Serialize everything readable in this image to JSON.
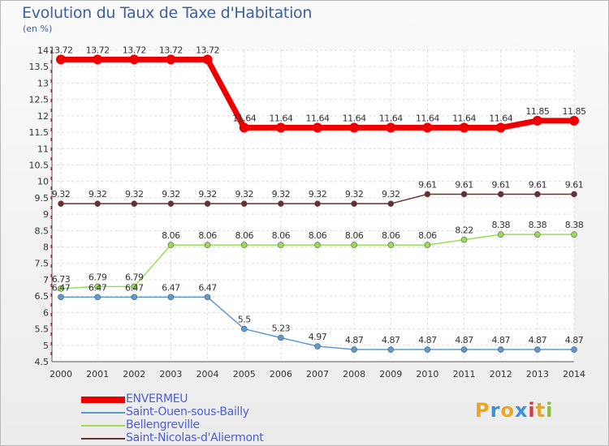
{
  "title": "Evolution du Taux de Taxe d'Habitation",
  "unit": "(en %)",
  "logo": {
    "text": "Proxiti",
    "letters": [
      "P",
      "r",
      "o",
      "x",
      "i",
      "t",
      "i"
    ],
    "colors": [
      "#e8a81e",
      "#3f8fd8",
      "#e8a81e",
      "#3f8fd8",
      "#d8384a",
      "#e8a81e",
      "#8cbd3c"
    ]
  },
  "chart_data": {
    "type": "line",
    "title": "Evolution du Taux de Taxe d'Habitation",
    "ylabel": "(en %)",
    "xlabel": "",
    "x": [
      "2000",
      "2001",
      "2002",
      "2003",
      "2004",
      "2005",
      "2006",
      "2007",
      "2008",
      "2009",
      "2010",
      "2011",
      "2012",
      "2013",
      "2014"
    ],
    "ylim": [
      4.5,
      14
    ],
    "yticks": [
      "4.5",
      "5",
      "5.5",
      "6",
      "6.5",
      "7",
      "7.5",
      "8",
      "8.5",
      "9",
      "9.5",
      "10",
      "10.5",
      "11",
      "11.5",
      "12",
      "12.5",
      "13",
      "13.5",
      "14"
    ],
    "grid": true,
    "legend_position": "bottom-left",
    "series": [
      {
        "name": "ENVERMEU",
        "color": "#ee0000",
        "width": 7,
        "marker": 6,
        "values": [
          13.72,
          13.72,
          13.72,
          13.72,
          13.72,
          11.64,
          11.64,
          11.64,
          11.64,
          11.64,
          11.64,
          11.64,
          11.64,
          11.85,
          11.85
        ]
      },
      {
        "name": "Saint-Ouen-sous-Bailly",
        "color": "#5b9bd5",
        "width": 1.5,
        "marker": 3.5,
        "values": [
          6.47,
          6.47,
          6.47,
          6.47,
          6.47,
          5.5,
          5.23,
          4.97,
          4.87,
          4.87,
          4.87,
          4.87,
          4.87,
          4.87,
          4.87
        ]
      },
      {
        "name": "Bellengreville",
        "color": "#99dd55",
        "width": 1.5,
        "marker": 3.5,
        "values": [
          6.73,
          6.79,
          6.79,
          8.06,
          8.06,
          8.06,
          8.06,
          8.06,
          8.06,
          8.06,
          8.06,
          8.22,
          8.38,
          8.38,
          8.38
        ]
      },
      {
        "name": "Saint-Nicolas-d'Aliermont",
        "color": "#6b2e2e",
        "width": 1.5,
        "marker": 3.5,
        "values": [
          9.32,
          9.32,
          9.32,
          9.32,
          9.32,
          9.32,
          9.32,
          9.32,
          9.32,
          9.32,
          9.61,
          9.61,
          9.61,
          9.61,
          9.61
        ]
      }
    ]
  }
}
